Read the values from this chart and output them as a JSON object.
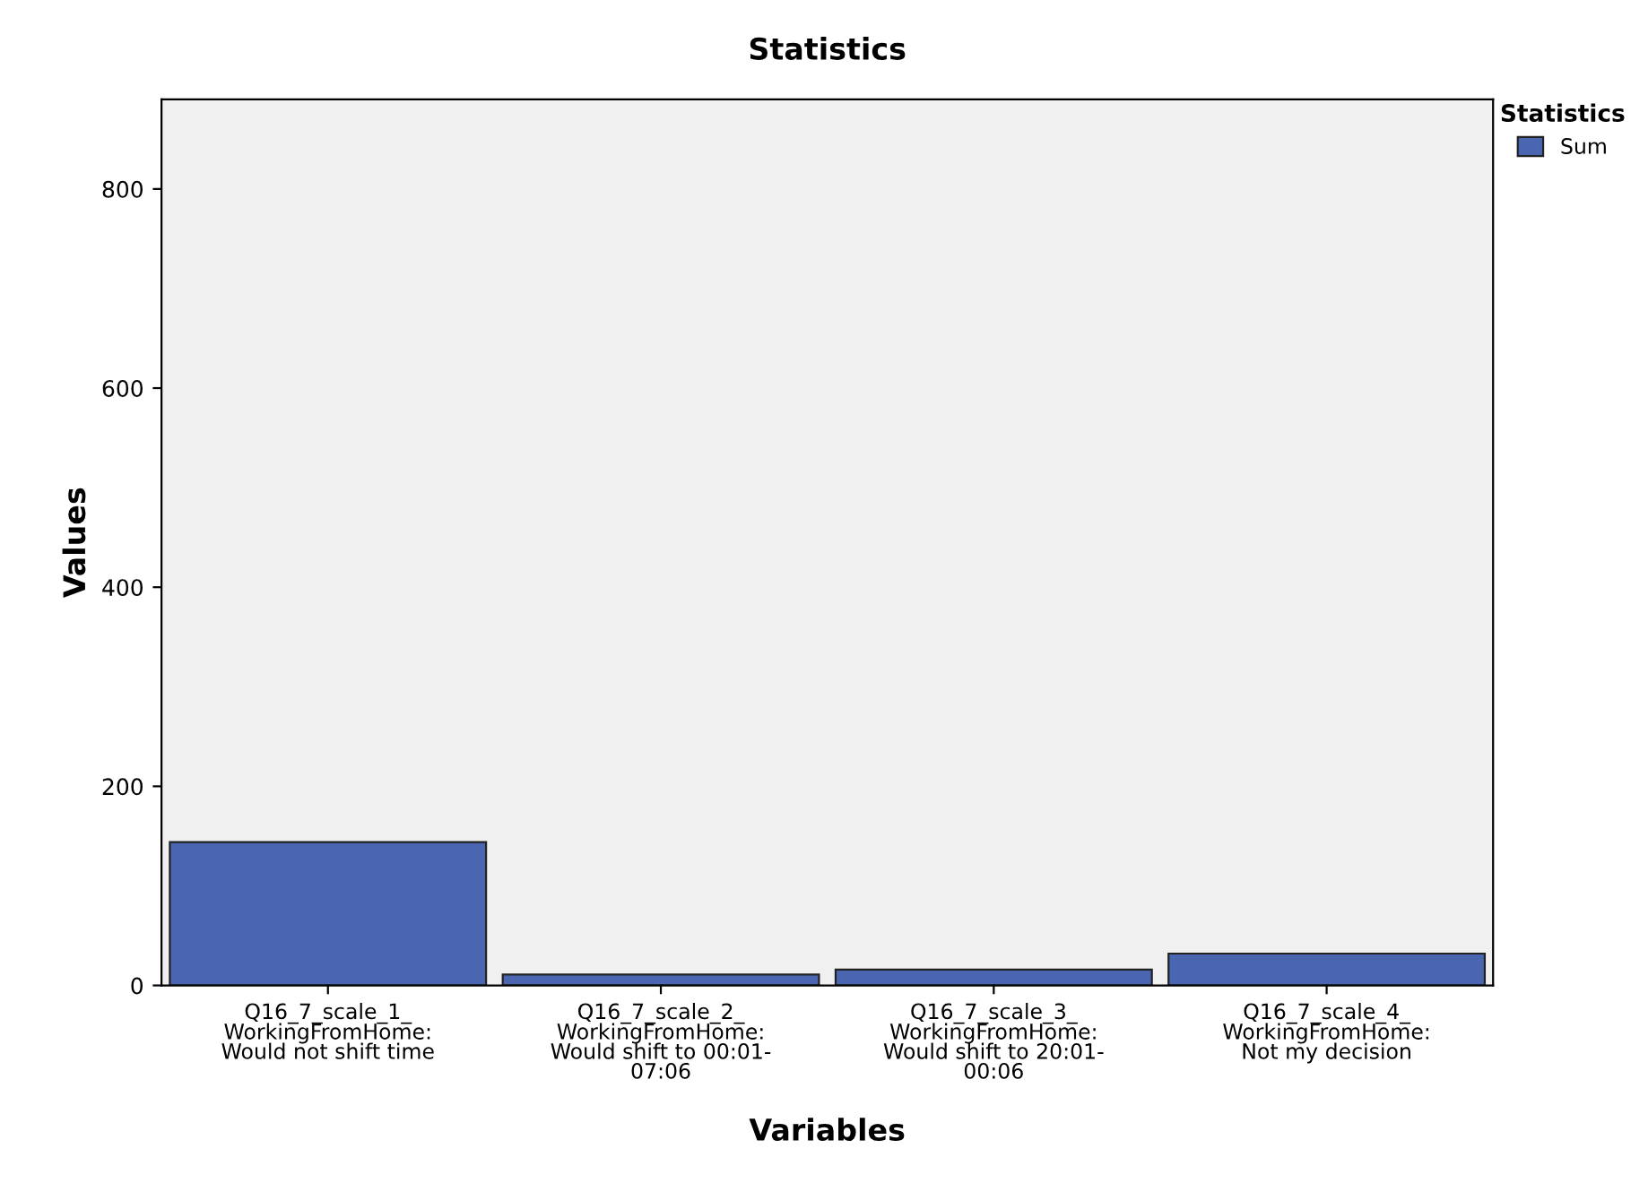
{
  "chart_data": {
    "type": "bar",
    "title": "Statistics",
    "xlabel": "Variables",
    "ylabel": "Values",
    "legend_title": "Statistics",
    "categories": [
      "Q16_7_scale_1_\nWorkingFromHome:\nWould not shift time",
      "Q16_7_scale_2_\nWorkingFromHome:\nWould shift to 00:01-\n07:06",
      "Q16_7_scale_3_\nWorkingFromHome:\nWould shift to 20:01-\n00:06",
      "Q16_7_scale_4_\nWorkingFromHome:\nNot my decision"
    ],
    "series": [
      {
        "name": "Sum",
        "color": "#4a66b0",
        "values": [
          144,
          11,
          16,
          32
        ]
      }
    ],
    "ylim": [
      0,
      890
    ],
    "yticks": [
      0,
      200,
      400,
      600,
      800
    ],
    "grid": false,
    "legend": "top right"
  }
}
